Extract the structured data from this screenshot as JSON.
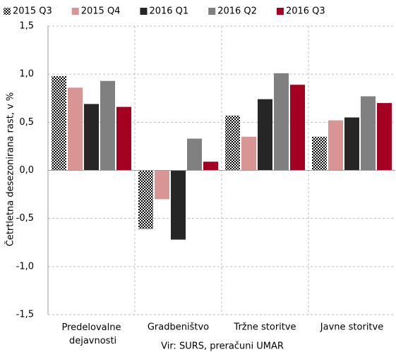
{
  "chart_data": {
    "type": "bar",
    "y_label": "Četrtletna desezonirana rast, v %",
    "source": "Vir: SURS, preračuni UMAR",
    "categories": [
      "Predelovalne dejavnosti",
      "Gradbeništvo",
      "Tržne storitve",
      "Javne storitve"
    ],
    "series": [
      {
        "name": "2015 Q3",
        "color": "#000000",
        "pattern": "checkerboard",
        "values": [
          0.98,
          -0.61,
          0.57,
          0.35
        ]
      },
      {
        "name": "2015 Q4",
        "color": "#d99594",
        "values": [
          0.86,
          -0.3,
          0.35,
          0.52
        ]
      },
      {
        "name": "2016 Q1",
        "color": "#262626",
        "values": [
          0.69,
          -0.72,
          0.74,
          0.55
        ]
      },
      {
        "name": "2016 Q2",
        "color": "#808080",
        "values": [
          0.93,
          0.33,
          1.01,
          0.77
        ]
      },
      {
        "name": "2016 Q3",
        "color": "#a50021",
        "values": [
          0.66,
          0.09,
          0.89,
          0.7
        ]
      }
    ],
    "ylim": [
      -1.5,
      1.5
    ],
    "yticks": [
      {
        "value": -1.5,
        "label": "-1,5"
      },
      {
        "value": -1.0,
        "label": "-1,0"
      },
      {
        "value": -0.5,
        "label": "-0,5"
      },
      {
        "value": 0,
        "label": "0,0"
      },
      {
        "value": 0.5,
        "label": "0,5"
      },
      {
        "value": 1.0,
        "label": "1,0"
      },
      {
        "value": 1.5,
        "label": "1,5"
      }
    ],
    "grid": true,
    "legend": "top"
  }
}
